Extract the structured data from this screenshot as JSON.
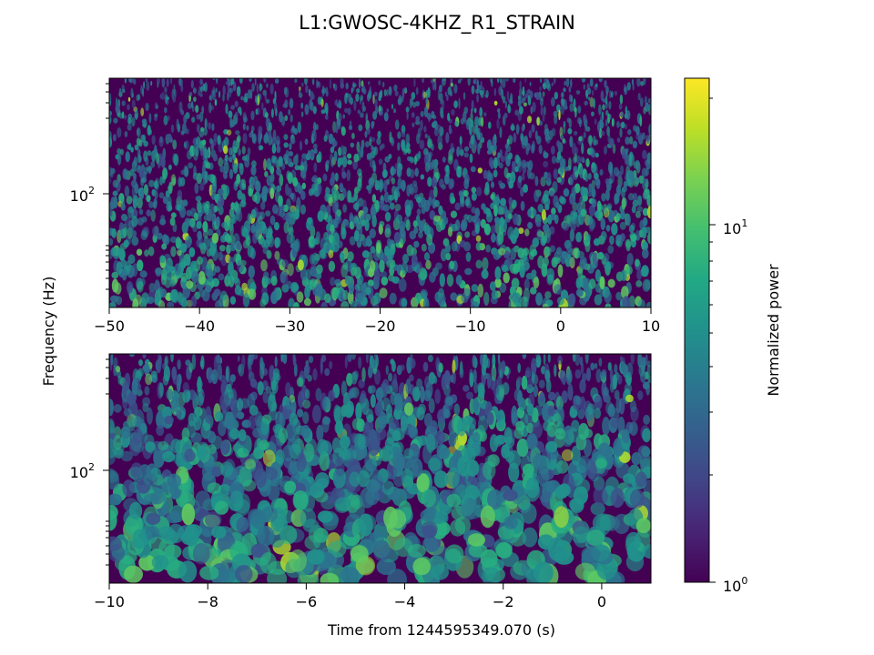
{
  "chart_data": [
    {
      "type": "heatmap",
      "panel": "top",
      "title": "L1:GWOSC-4KHZ_R1_STRAIN",
      "xlabel": "",
      "ylabel": "Frequency (Hz)",
      "xlim": [
        -50,
        10
      ],
      "ylim": [
        20,
        500
      ],
      "yscale": "log",
      "xticks": [
        -50,
        -40,
        -30,
        -20,
        -10,
        0,
        10
      ],
      "xtick_labels": [
        "−50",
        "−40",
        "−30",
        "−20",
        "−10",
        "0",
        "10"
      ],
      "ytick_label": "10",
      "ytick_exp": "2"
    },
    {
      "type": "heatmap",
      "panel": "bottom",
      "xlabel": "Time from 1244595349.070 (s)",
      "ylabel": "",
      "xlim": [
        -10,
        1
      ],
      "ylim": [
        20,
        500
      ],
      "yscale": "log",
      "xticks": [
        -10,
        -8,
        -6,
        -4,
        -2,
        0
      ],
      "xtick_labels": [
        "−10",
        "−8",
        "−6",
        "−4",
        "−2",
        "0"
      ],
      "ytick_label": "10",
      "ytick_exp": "2"
    }
  ],
  "colorbar": {
    "label": "Normalized power",
    "scale": "log",
    "range": [
      1,
      25
    ],
    "colormap": "viridis",
    "tick_labels": [
      {
        "base": "10",
        "exp": "1"
      },
      {
        "base": "10",
        "exp": "0"
      }
    ]
  }
}
